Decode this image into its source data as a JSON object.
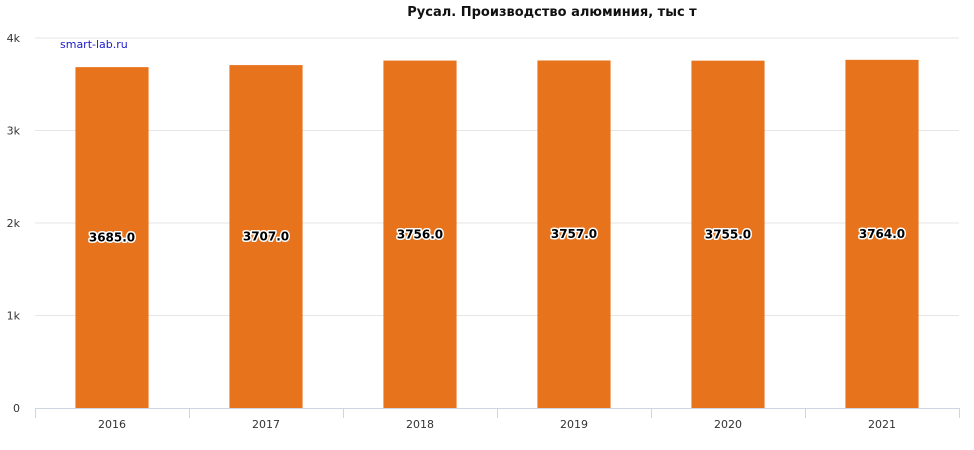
{
  "chart_data": {
    "type": "bar",
    "title": "Русал. Производство алюминия, тыс т",
    "watermark": "smart-lab.ru",
    "categories": [
      "2016",
      "2017",
      "2018",
      "2019",
      "2020",
      "2021"
    ],
    "values": [
      3685.0,
      3707.0,
      3756.0,
      3757.0,
      3755.0,
      3764.0
    ],
    "data_labels": [
      "3685.0",
      "3707.0",
      "3756.0",
      "3757.0",
      "3755.0",
      "3764.0"
    ],
    "ylim": [
      0,
      4000
    ],
    "yticks": [
      0,
      1000,
      2000,
      3000,
      4000
    ],
    "ytick_labels": [
      "0",
      "1k",
      "2k",
      "3k",
      "4k"
    ],
    "xlabel": "",
    "ylabel": "",
    "grid": true,
    "bar_color": "#e8731d"
  }
}
